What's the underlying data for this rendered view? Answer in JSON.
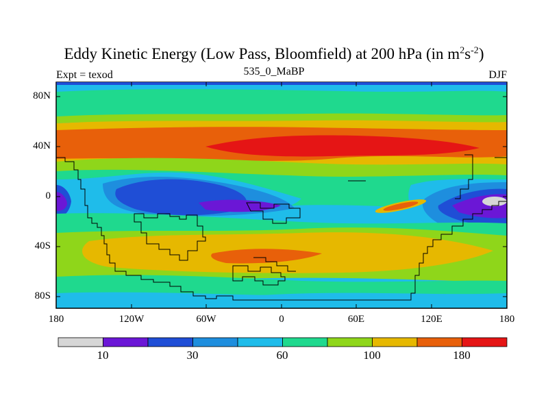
{
  "title_main": "Eddy Kinetic Energy (Low Pass, Bloomfield) at 200 hPa (in m",
  "title_sup1": "2",
  "title_mid": "s",
  "title_sup2": "-2",
  "title_end": ")",
  "subtitle_left": "Expt = texod",
  "subtitle_center": "535_0_MaBP",
  "subtitle_right": "DJF",
  "y_ticks": [
    "80N",
    "40N",
    "0",
    "40S",
    "80S"
  ],
  "x_ticks": [
    "180",
    "120W",
    "60W",
    "0",
    "60E",
    "120E",
    "180"
  ],
  "colorbar": {
    "colors": [
      "#d6d6d6",
      "#6b17d6",
      "#1f4ed6",
      "#1e8ede",
      "#1fbcea",
      "#1fd98e",
      "#8fd61a",
      "#e6b800",
      "#e8600a",
      "#e51515"
    ],
    "labels": [
      "10",
      "30",
      "60",
      "100",
      "180"
    ]
  },
  "field_summary": {
    "variable": "Eddy Kinetic Energy",
    "level": "200 hPa",
    "season": "DJF"
  }
}
